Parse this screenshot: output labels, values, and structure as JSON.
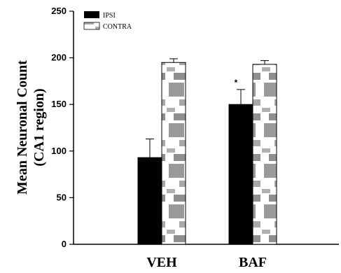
{
  "chart_data": {
    "type": "bar",
    "categories": [
      "VEH",
      "BAF"
    ],
    "series": [
      {
        "name": "IPSI",
        "values": [
          93,
          150
        ],
        "errors": [
          20,
          16
        ],
        "color": "#000000"
      },
      {
        "name": "CONTRA",
        "values": [
          195,
          193
        ],
        "errors": [
          4,
          4
        ],
        "color": "#9a9a9a"
      }
    ],
    "annotations": [
      {
        "category": "BAF",
        "series": "IPSI",
        "text": "*"
      }
    ],
    "ylabel_line1": "Mean Neuronal Count",
    "ylabel_line2": "(CA1 region)",
    "ylim": [
      0,
      250
    ],
    "yticks": [
      0,
      50,
      100,
      150,
      200,
      250
    ],
    "legend_position": "top-left",
    "grid": false
  }
}
